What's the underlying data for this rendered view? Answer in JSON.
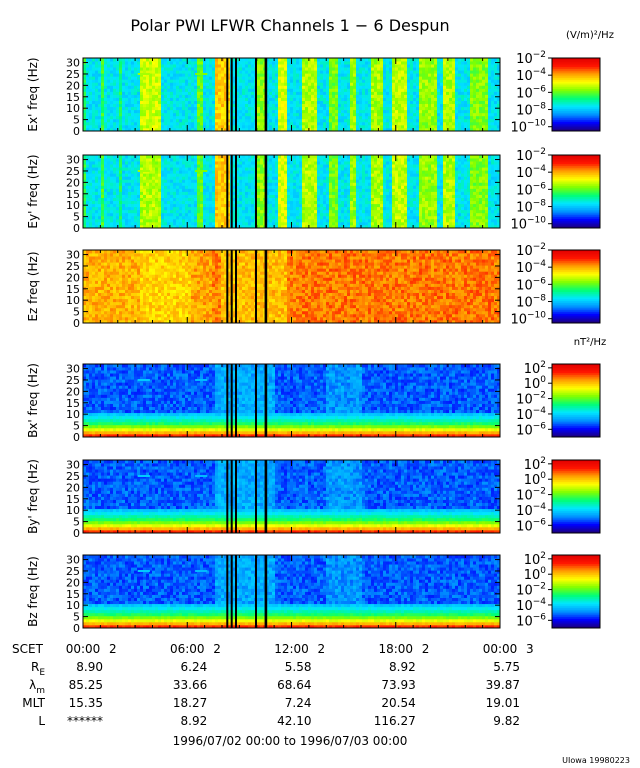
{
  "title": "Polar PWI LFWR Channels 1 − 6 Despun",
  "electric_unit": "(V/m)²/Hz",
  "magnetic_unit": "nT²/Hz",
  "x_tick_labels": [
    "00:00",
    "06:00",
    "12:00",
    "18:00",
    "00:00"
  ],
  "x_day_labels": [
    "2",
    "2",
    "2",
    "2",
    "3"
  ],
  "date_range": "1996/07/02 00:00 to 1996/07/03 00:00",
  "credit": "UIowa 19980223",
  "ephemeris": {
    "row_labels": [
      "SCET",
      "R",
      "λ",
      "MLT",
      "L"
    ],
    "row_label_subscripts": [
      "",
      "E",
      "m",
      "",
      ""
    ],
    "columns": [
      {
        "re": "8.90",
        "lam": "85.25",
        "mlt": "15.35",
        "l": "******"
      },
      {
        "re": "6.24",
        "lam": "33.66",
        "mlt": "18.27",
        "l": "8.92"
      },
      {
        "re": "5.58",
        "lam": "68.64",
        "mlt": "7.24",
        "l": "42.10"
      },
      {
        "re": "8.92",
        "lam": "73.93",
        "mlt": "20.54",
        "l": "116.27"
      },
      {
        "re": "5.75",
        "lam": "39.87",
        "mlt": "19.01",
        "l": "9.82"
      }
    ]
  },
  "colors": {
    "scale": [
      "#1e0078",
      "#0000ff",
      "#0094ff",
      "#00e6ff",
      "#00ff78",
      "#7fff00",
      "#ffff00",
      "#ffa000",
      "#ff1400",
      "#e00000"
    ]
  },
  "chart_data": [
    {
      "type": "heatmap",
      "channel": "Ex'",
      "ylabel": "Ex' freq (Hz)",
      "xlabel": "SCET",
      "x_range_hours": [
        0,
        24
      ],
      "ylim": [
        0,
        32
      ],
      "y_ticks": [
        0,
        5,
        10,
        15,
        20,
        25,
        30
      ],
      "colorbar": {
        "ticks": [
          "-2",
          "-4",
          "-6",
          "-8",
          "-10"
        ],
        "range_log10": [
          -10.5,
          -2
        ]
      },
      "background_log10": -7.6,
      "bursts": [
        {
          "start": 0.0,
          "end": 0.2,
          "log10": -6.5
        },
        {
          "start": 1.0,
          "end": 1.25,
          "log10": -6.3
        },
        {
          "start": 2.0,
          "end": 2.2,
          "log10": -6.7
        },
        {
          "start": 3.35,
          "end": 4.5,
          "log10": -5.2
        },
        {
          "start": 6.5,
          "end": 6.85,
          "log10": -6.0
        },
        {
          "start": 7.6,
          "end": 8.4,
          "log10": -4.3
        },
        {
          "start": 10.0,
          "end": 10.6,
          "log10": -5.7
        },
        {
          "start": 11.2,
          "end": 11.8,
          "log10": -5.1
        },
        {
          "start": 12.6,
          "end": 13.4,
          "log10": -5.4
        },
        {
          "start": 14.2,
          "end": 14.6,
          "log10": -5.9
        },
        {
          "start": 15.3,
          "end": 15.7,
          "log10": -5.6
        },
        {
          "start": 16.6,
          "end": 17.2,
          "log10": -5.5
        },
        {
          "start": 17.8,
          "end": 18.6,
          "log10": -5.3
        },
        {
          "start": 19.4,
          "end": 20.4,
          "log10": -5.6
        },
        {
          "start": 20.8,
          "end": 21.4,
          "log10": -5.4
        },
        {
          "start": 22.2,
          "end": 23.3,
          "log10": -5.8
        }
      ],
      "lines": [
        {
          "hour": 3.5,
          "freq": 25,
          "log10": -5.5
        },
        {
          "hour": 6.8,
          "freq": 25,
          "log10": -5.8
        }
      ],
      "gaps": [
        [
          8.25,
          8.35
        ],
        [
          8.5,
          8.6
        ],
        [
          8.75,
          8.85
        ],
        [
          9.9,
          10.0
        ],
        [
          10.45,
          10.6
        ]
      ]
    },
    {
      "type": "heatmap",
      "channel": "Ey'",
      "ylabel": "Ey' freq (Hz)",
      "xlabel": "SCET",
      "x_range_hours": [
        0,
        24
      ],
      "ylim": [
        0,
        32
      ],
      "y_ticks": [
        0,
        5,
        10,
        15,
        20,
        25,
        30
      ],
      "colorbar": {
        "ticks": [
          "-2",
          "-4",
          "-6",
          "-8",
          "-10"
        ],
        "range_log10": [
          -10.5,
          -2
        ]
      },
      "background_log10": -7.6,
      "bursts": [
        {
          "start": 0.0,
          "end": 0.2,
          "log10": -6.5
        },
        {
          "start": 1.0,
          "end": 1.25,
          "log10": -6.3
        },
        {
          "start": 2.0,
          "end": 2.2,
          "log10": -6.7
        },
        {
          "start": 3.35,
          "end": 4.5,
          "log10": -5.4
        },
        {
          "start": 6.5,
          "end": 6.85,
          "log10": -6.0
        },
        {
          "start": 7.6,
          "end": 8.4,
          "log10": -4.3
        },
        {
          "start": 10.0,
          "end": 10.6,
          "log10": -5.7
        },
        {
          "start": 11.2,
          "end": 11.8,
          "log10": -5.1
        },
        {
          "start": 12.6,
          "end": 13.4,
          "log10": -5.4
        },
        {
          "start": 14.2,
          "end": 14.6,
          "log10": -5.9
        },
        {
          "start": 15.3,
          "end": 15.7,
          "log10": -5.6
        },
        {
          "start": 16.6,
          "end": 17.2,
          "log10": -5.5
        },
        {
          "start": 17.8,
          "end": 18.6,
          "log10": -5.3
        },
        {
          "start": 19.4,
          "end": 20.4,
          "log10": -5.6
        },
        {
          "start": 20.8,
          "end": 21.4,
          "log10": -5.4
        },
        {
          "start": 22.2,
          "end": 23.3,
          "log10": -5.8
        }
      ],
      "lines": [
        {
          "hour": 3.5,
          "freq": 25,
          "log10": -5.5
        },
        {
          "hour": 6.8,
          "freq": 25,
          "log10": -5.8
        }
      ],
      "gaps": [
        [
          8.25,
          8.35
        ],
        [
          8.5,
          8.6
        ],
        [
          8.75,
          8.85
        ],
        [
          9.9,
          10.0
        ],
        [
          10.45,
          10.6
        ]
      ]
    },
    {
      "type": "heatmap",
      "channel": "Ez",
      "ylabel": "Ez freq (Hz)",
      "xlabel": "SCET",
      "x_range_hours": [
        0,
        24
      ],
      "ylim": [
        0,
        32
      ],
      "y_ticks": [
        0,
        5,
        10,
        15,
        20,
        25,
        30
      ],
      "colorbar": {
        "ticks": [
          "-2",
          "-4",
          "-6",
          "-8",
          "-10"
        ],
        "range_log10": [
          -10.5,
          -2
        ]
      },
      "background_log10": -3.7,
      "bursts": [
        {
          "start": 0.0,
          "end": 3.2,
          "log10": -4.1
        },
        {
          "start": 3.2,
          "end": 6.2,
          "log10": -4.4
        },
        {
          "start": 6.2,
          "end": 7.4,
          "log10": -4.0
        },
        {
          "start": 8.0,
          "end": 11.8,
          "log10": -4.2
        },
        {
          "start": 12.4,
          "end": 24.0,
          "log10": -3.6
        }
      ],
      "lines": [],
      "gaps": [
        [
          8.25,
          8.35
        ],
        [
          8.5,
          8.6
        ],
        [
          8.75,
          8.85
        ],
        [
          9.9,
          10.0
        ],
        [
          10.45,
          10.6
        ]
      ]
    },
    {
      "type": "heatmap",
      "channel": "Bx'",
      "ylabel": "Bx' freq (Hz)",
      "xlabel": "SCET",
      "x_range_hours": [
        0,
        24
      ],
      "ylim": [
        0,
        32
      ],
      "y_ticks": [
        0,
        5,
        10,
        15,
        20,
        25,
        30
      ],
      "colorbar": {
        "ticks": [
          "2",
          "0",
          "-2",
          "-4",
          "-6"
        ],
        "range_log10": [
          -7,
          2.5
        ]
      },
      "background_log10": -5.3,
      "low_freq_log10": {
        "0": 1.8,
        "2": 0.2,
        "4": -1.4,
        "6": -2.6,
        "8": -3.5,
        "10": -4.2
      },
      "bursts": [
        {
          "start": 7.6,
          "end": 11.0,
          "log10": -4.6
        },
        {
          "start": 14.0,
          "end": 16.0,
          "log10": -4.8
        }
      ],
      "lines": [
        {
          "hour": 3.5,
          "freq": 25,
          "log10": -4.2
        },
        {
          "hour": 6.8,
          "freq": 25,
          "log10": -4.4
        }
      ],
      "gaps": [
        [
          8.25,
          8.35
        ],
        [
          8.5,
          8.6
        ],
        [
          8.75,
          8.85
        ],
        [
          9.9,
          10.0
        ],
        [
          10.45,
          10.6
        ]
      ]
    },
    {
      "type": "heatmap",
      "channel": "By'",
      "ylabel": "By' freq (Hz)",
      "xlabel": "SCET",
      "x_range_hours": [
        0,
        24
      ],
      "ylim": [
        0,
        32
      ],
      "y_ticks": [
        0,
        5,
        10,
        15,
        20,
        25,
        30
      ],
      "colorbar": {
        "ticks": [
          "2",
          "0",
          "-2",
          "-4",
          "-6"
        ],
        "range_log10": [
          -7,
          2.5
        ]
      },
      "background_log10": -5.3,
      "low_freq_log10": {
        "0": 1.8,
        "2": 0.2,
        "4": -1.4,
        "6": -2.6,
        "8": -3.5,
        "10": -4.2
      },
      "bursts": [
        {
          "start": 7.6,
          "end": 11.0,
          "log10": -4.6
        },
        {
          "start": 14.0,
          "end": 16.0,
          "log10": -4.8
        }
      ],
      "lines": [
        {
          "hour": 3.5,
          "freq": 25,
          "log10": -4.2
        },
        {
          "hour": 6.8,
          "freq": 25,
          "log10": -4.4
        }
      ],
      "gaps": [
        [
          8.25,
          8.35
        ],
        [
          8.5,
          8.6
        ],
        [
          8.75,
          8.85
        ],
        [
          9.9,
          10.0
        ],
        [
          10.45,
          10.6
        ]
      ]
    },
    {
      "type": "heatmap",
      "channel": "Bz",
      "ylabel": "Bz freq (Hz)",
      "xlabel": "SCET",
      "x_range_hours": [
        0,
        24
      ],
      "ylim": [
        0,
        32
      ],
      "y_ticks": [
        0,
        5,
        10,
        15,
        20,
        25,
        30
      ],
      "colorbar": {
        "ticks": [
          "2",
          "0",
          "-2",
          "-4",
          "-6"
        ],
        "range_log10": [
          -7,
          2.5
        ]
      },
      "background_log10": -5.3,
      "low_freq_log10": {
        "0": 1.8,
        "2": 0.2,
        "4": -1.4,
        "6": -2.6,
        "8": -3.5,
        "10": -4.2
      },
      "bursts": [
        {
          "start": 7.6,
          "end": 11.0,
          "log10": -4.6
        },
        {
          "start": 14.0,
          "end": 16.0,
          "log10": -4.8
        }
      ],
      "lines": [
        {
          "hour": 3.5,
          "freq": 25,
          "log10": -4.2
        },
        {
          "hour": 6.8,
          "freq": 25,
          "log10": -4.4
        }
      ],
      "gaps": [
        [
          8.25,
          8.35
        ],
        [
          8.5,
          8.6
        ],
        [
          8.75,
          8.85
        ],
        [
          9.9,
          10.0
        ],
        [
          10.45,
          10.6
        ]
      ]
    }
  ]
}
